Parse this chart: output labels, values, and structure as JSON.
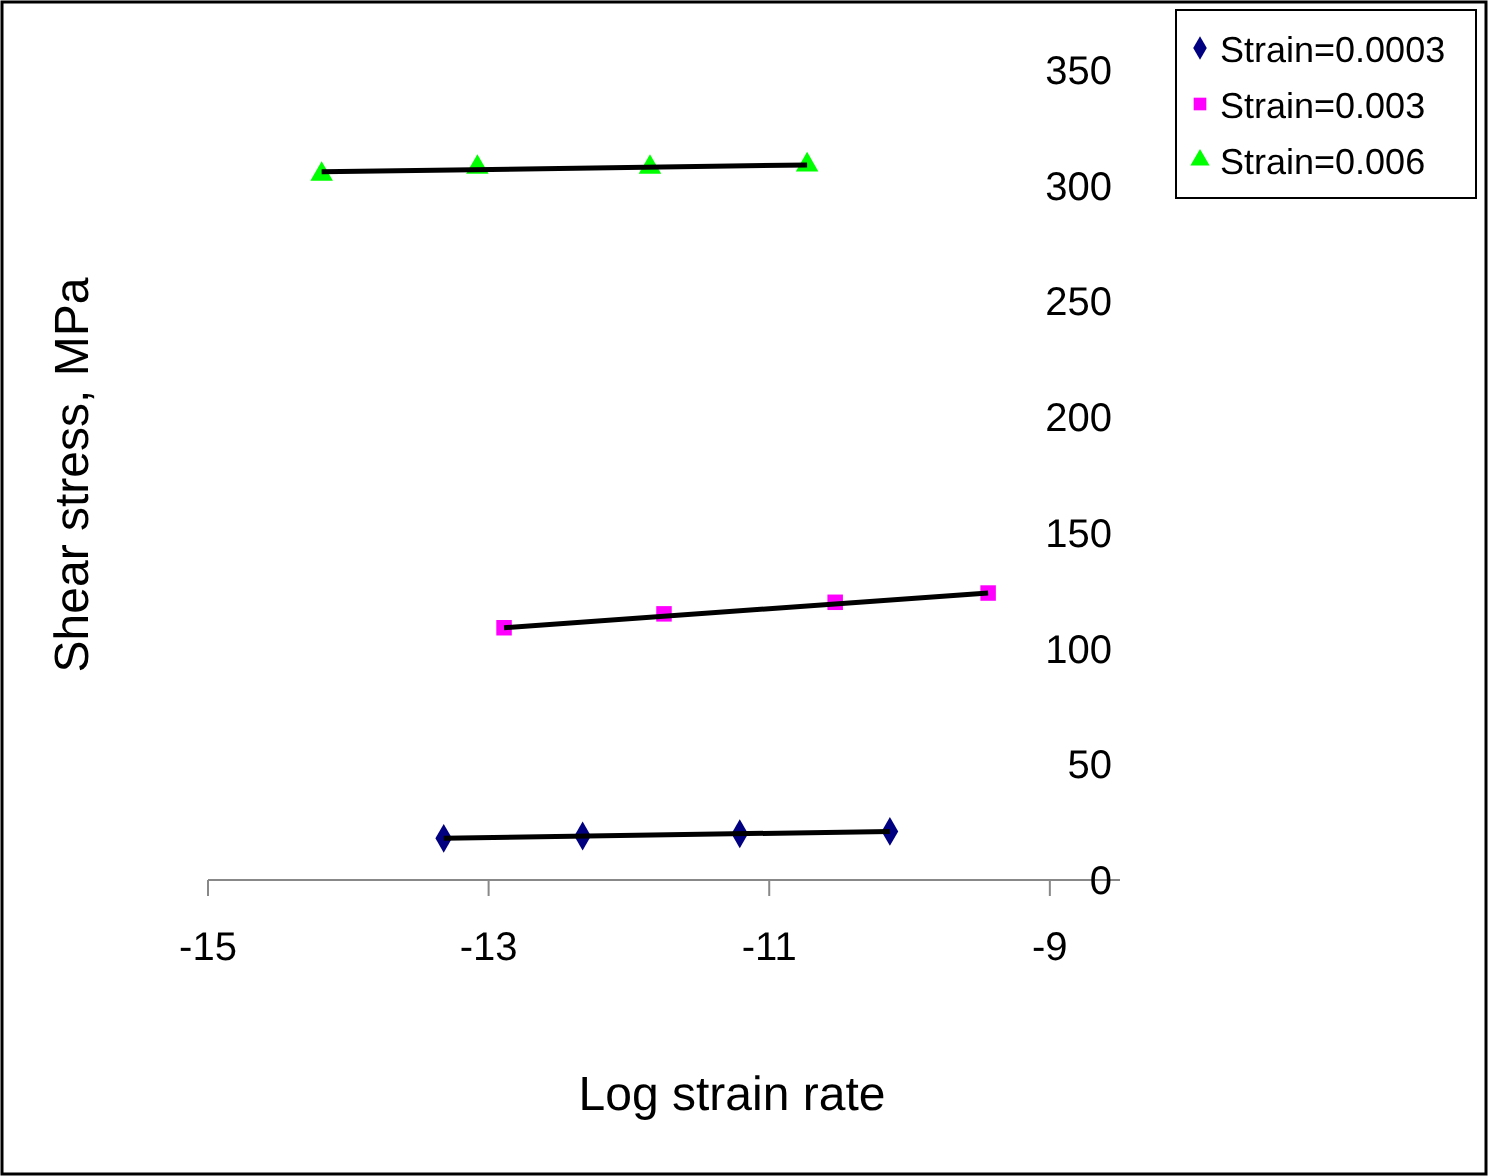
{
  "chart_data": {
    "type": "scatter",
    "xlabel": "Log strain rate",
    "ylabel": "Shear stress, MPa",
    "xlim": [
      -15,
      -8.5
    ],
    "xticks": [
      -15,
      -13,
      -11,
      -9
    ],
    "ylim": [
      0,
      350
    ],
    "yticks": [
      0,
      50,
      100,
      150,
      200,
      250,
      300,
      350
    ],
    "grid": false,
    "legend": "top right",
    "series": [
      {
        "name": "Strain=0.0003",
        "color": "#000080",
        "marker": "diamond",
        "x": [
          -13.32,
          -12.33,
          -11.21,
          -10.14
        ],
        "values": [
          18,
          19,
          20,
          21
        ]
      },
      {
        "name": "Strain=0.003",
        "color": "#ff00ff",
        "marker": "square",
        "x": [
          -12.89,
          -11.75,
          -10.53,
          -9.44
        ],
        "values": [
          109,
          115,
          120,
          124
        ]
      },
      {
        "name": "Strain=0.006",
        "color": "#00ff00",
        "marker": "triangle",
        "x": [
          -14.19,
          -13.08,
          -11.85,
          -10.73
        ],
        "values": [
          305,
          308,
          308,
          309
        ]
      },
      {
        "type": "line",
        "color": "#000000",
        "marker": "none",
        "x": [
          -13.32,
          -10.14
        ],
        "values": [
          18,
          21
        ]
      },
      {
        "type": "line",
        "color": "#000000",
        "marker": "none",
        "x": [
          -12.89,
          -9.44
        ],
        "values": [
          109,
          124
        ]
      },
      {
        "type": "line",
        "color": "#000000",
        "marker": "none",
        "x": [
          -14.19,
          -10.73
        ],
        "values": [
          306,
          309
        ]
      }
    ]
  }
}
